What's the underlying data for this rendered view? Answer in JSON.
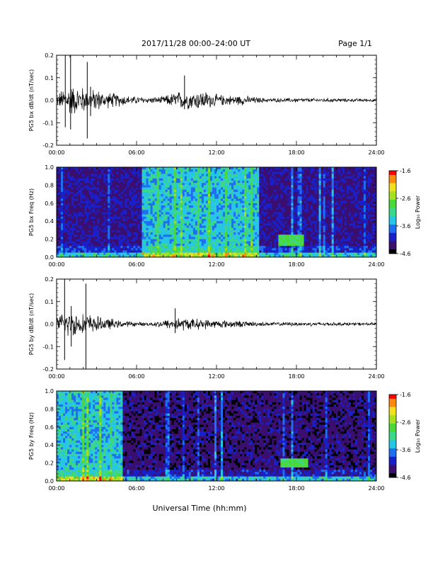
{
  "header": {
    "date_range": "2017/11/28  00:00–24:00 UT",
    "page": "Page 1/1"
  },
  "x_axis": {
    "label": "Universal Time (hh:mm)",
    "ticks": [
      "00:00",
      "06:00",
      "12:00",
      "18:00",
      "24:00"
    ]
  },
  "colors": {
    "trace": "#000000",
    "colormap": [
      "#000000",
      "#3b0f6f",
      "#1a20c8",
      "#1f6ff0",
      "#27c6e6",
      "#3cd88a",
      "#4cd83a",
      "#a6e020",
      "#f0e020",
      "#ff8a10",
      "#ff0000"
    ]
  },
  "chart_data": [
    {
      "type": "line",
      "ylabel": "PG5 bx dB/dt (nT/sec)",
      "xlim": [
        0,
        24
      ],
      "ylim": [
        -0.2,
        0.2
      ],
      "yticks": [
        "0.2",
        "0.1",
        "0.0",
        "-0.1",
        "-0.2"
      ],
      "envelope": {
        "hours": [
          0,
          0.5,
          1,
          1.5,
          2,
          2.5,
          3,
          3.5,
          4,
          4.5,
          5,
          5.5,
          6,
          7,
          8,
          9,
          10,
          11,
          12,
          13,
          14,
          15,
          16,
          17,
          18,
          19,
          20,
          21,
          22,
          23,
          24
        ],
        "amplitude": [
          0.03,
          0.06,
          0.08,
          0.07,
          0.07,
          0.05,
          0.06,
          0.04,
          0.04,
          0.035,
          0.03,
          0.02,
          0.02,
          0.015,
          0.02,
          0.045,
          0.045,
          0.05,
          0.03,
          0.025,
          0.025,
          0.015,
          0.01,
          0.01,
          0.012,
          0.01,
          0.01,
          0.01,
          0.008,
          0.008,
          0.008
        ]
      },
      "spikes": [
        {
          "hour": 0.65,
          "max": 0.2,
          "min": -0.12
        },
        {
          "hour": 1.05,
          "max": 0.2,
          "min": -0.13
        },
        {
          "hour": 2.3,
          "max": 0.17,
          "min": -0.17
        },
        {
          "hour": 9.6,
          "max": 0.11,
          "min": -0.04
        },
        {
          "hour": 2.55,
          "max": 0.06,
          "min": -0.07
        }
      ]
    },
    {
      "type": "heatmap",
      "ylabel": "PG5 bx Freq (Hz)",
      "xlim": [
        0,
        24
      ],
      "ylim": [
        0,
        1.0
      ],
      "yticks": [
        "1.0",
        "0.8",
        "0.6",
        "0.4",
        "0.2",
        "0.0"
      ],
      "colorbar": {
        "label": "Log₁₀ Power",
        "ticks": [
          "-1.6",
          "-2.6",
          "-3.6",
          "-4.6"
        ],
        "range": [
          -4.6,
          -1.6
        ]
      },
      "features": {
        "quiet_level": -4.2,
        "enhanced_band": {
          "start_hour": 6.4,
          "end_hour": 15.2,
          "level": -3.4
        },
        "lowfreq_patch": {
          "start_hour": 16.6,
          "end_hour": 18.6,
          "f_low": 0.12,
          "f_high": 0.25,
          "level": -2.9
        }
      }
    },
    {
      "type": "line",
      "ylabel": "PG5 by dB/dt (nT/sec)",
      "xlim": [
        0,
        24
      ],
      "ylim": [
        -0.2,
        0.2
      ],
      "yticks": [
        "0.2",
        "0.1",
        "0.0",
        "-0.1",
        "-0.2"
      ],
      "envelope": {
        "hours": [
          0,
          0.5,
          1,
          1.5,
          2,
          2.5,
          3,
          3.5,
          4,
          4.5,
          5,
          5.5,
          6,
          7,
          8,
          9,
          10,
          11,
          12,
          13,
          14,
          15,
          16,
          17,
          18,
          19,
          20,
          21,
          22,
          23,
          24
        ],
        "amplitude": [
          0.03,
          0.06,
          0.07,
          0.06,
          0.05,
          0.05,
          0.04,
          0.03,
          0.03,
          0.02,
          0.015,
          0.015,
          0.01,
          0.01,
          0.02,
          0.035,
          0.03,
          0.025,
          0.02,
          0.02,
          0.015,
          0.012,
          0.01,
          0.01,
          0.01,
          0.01,
          0.01,
          0.008,
          0.008,
          0.008,
          0.008
        ]
      },
      "spikes": [
        {
          "hour": 0.6,
          "max": 0.2,
          "min": -0.16
        },
        {
          "hour": 2.2,
          "max": 0.18,
          "min": -0.2
        },
        {
          "hour": 1.1,
          "max": 0.08,
          "min": -0.1
        },
        {
          "hour": 8.9,
          "max": 0.07,
          "min": -0.04
        }
      ]
    },
    {
      "type": "heatmap",
      "ylabel": "PG5 by Freq (Hz)",
      "xlim": [
        0,
        24
      ],
      "ylim": [
        0,
        1.0
      ],
      "yticks": [
        "1.0",
        "0.8",
        "0.6",
        "0.4",
        "0.2",
        "0.0"
      ],
      "colorbar": {
        "label": "Log₁₀ Power",
        "ticks": [
          "-1.6",
          "-2.6",
          "-3.6",
          "-4.6"
        ],
        "range": [
          -4.6,
          -1.6
        ]
      },
      "features": {
        "quiet_level": -4.3,
        "enhanced_band": {
          "start_hour": 0.0,
          "end_hour": 5.0,
          "level": -3.4
        },
        "lowfreq_patch": {
          "start_hour": 16.8,
          "end_hour": 18.8,
          "f_low": 0.16,
          "f_high": 0.26,
          "level": -2.9
        }
      }
    }
  ]
}
